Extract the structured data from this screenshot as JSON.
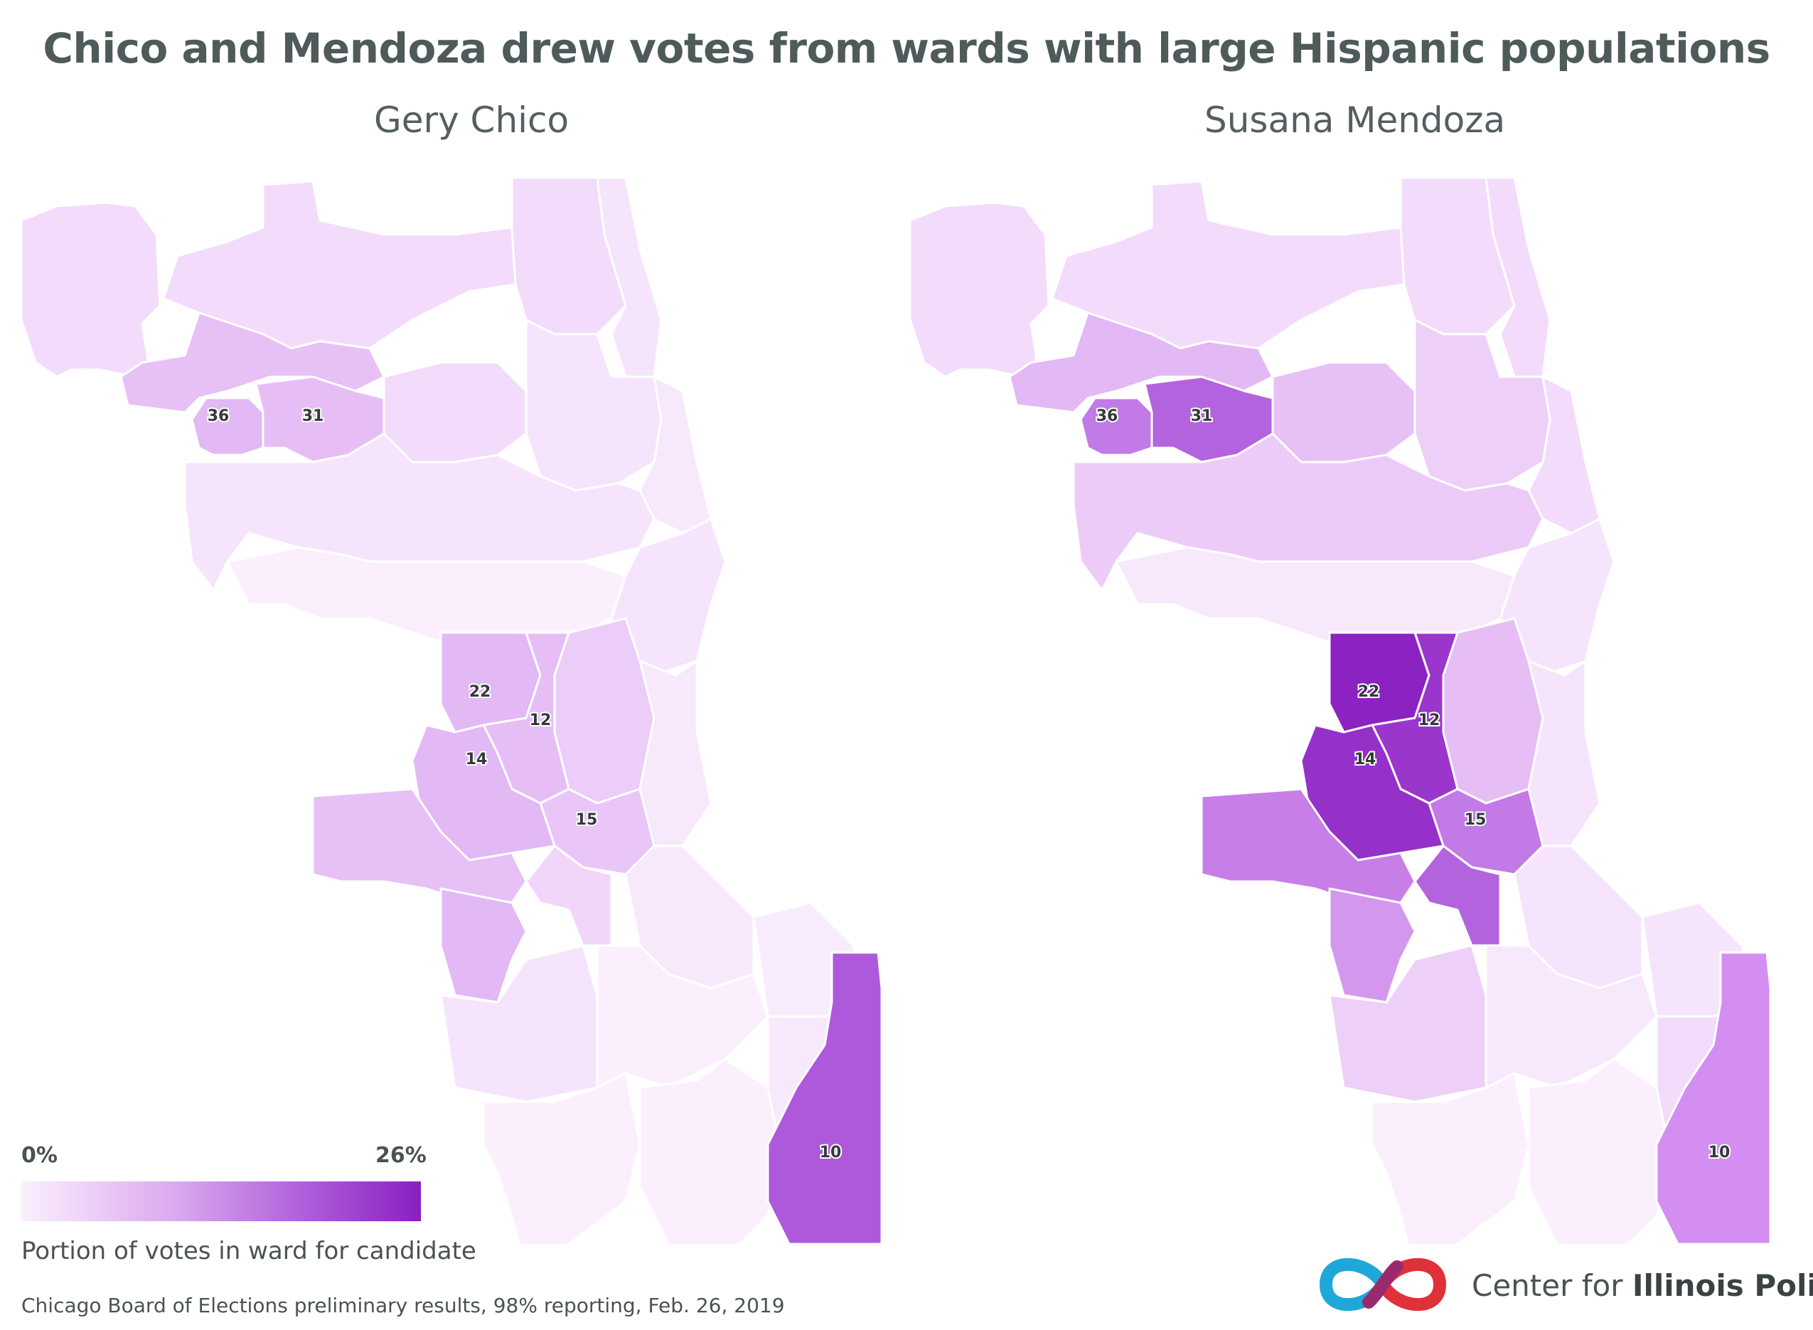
{
  "title": "Chico and Mendoza drew votes from wards with large Hispanic populations",
  "panels": [
    {
      "subtitle": "Gery Chico"
    },
    {
      "subtitle": "Susana Mendoza"
    }
  ],
  "colors": {
    "scale_min": "#fbf0fd",
    "scale_mid": "#d9a6ee",
    "scale_max": "#8a1fbf",
    "boundary": "#ffffff",
    "text": "#4a5254"
  },
  "chart_data": [
    {
      "type": "heatmap",
      "title": "Gery Chico",
      "labeled_wards": [
        {
          "ward": "36",
          "level": "medium"
        },
        {
          "ward": "31",
          "level": "medium"
        },
        {
          "ward": "22",
          "level": "medium"
        },
        {
          "ward": "12",
          "level": "medium"
        },
        {
          "ward": "14",
          "level": "medium"
        },
        {
          "ward": "15",
          "level": "medium"
        },
        {
          "ward": "10",
          "level": "high"
        }
      ]
    },
    {
      "type": "heatmap",
      "title": "Susana Mendoza",
      "labeled_wards": [
        {
          "ward": "36",
          "level": "high"
        },
        {
          "ward": "31",
          "level": "high"
        },
        {
          "ward": "22",
          "level": "very high"
        },
        {
          "ward": "12",
          "level": "very high"
        },
        {
          "ward": "14",
          "level": "very high"
        },
        {
          "ward": "15",
          "level": "high"
        },
        {
          "ward": "10",
          "level": "medium"
        }
      ]
    }
  ],
  "legend": {
    "min_label": "0%",
    "max_label": "26%",
    "caption": "Portion of votes in ward for candidate"
  },
  "source": "Chicago Board of Elections preliminary results, 98% reporting, Feb. 26, 2019",
  "org": {
    "prefix": "Center for ",
    "bold": "Illinois Politics",
    "logo_icon": "infinity-logo-icon"
  }
}
